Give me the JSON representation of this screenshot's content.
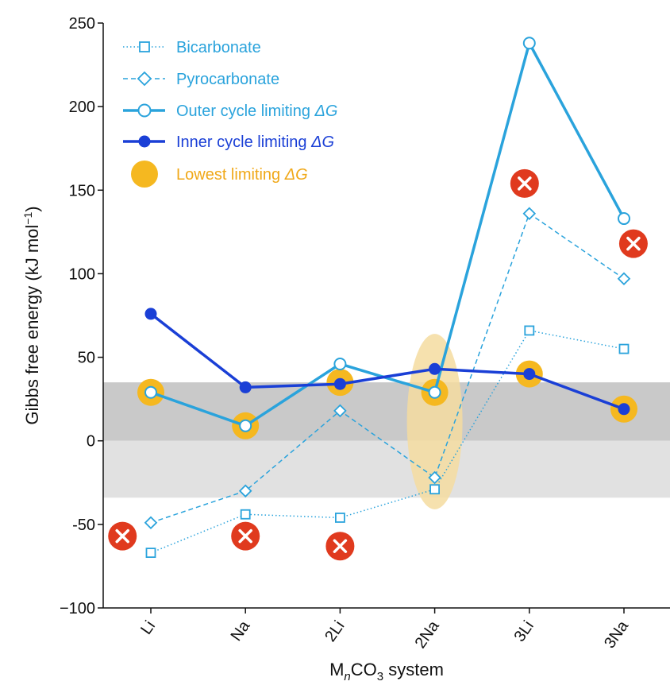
{
  "chart_data": {
    "type": "line",
    "ylabel_main": "Gibbs free energy (kJ mol",
    "ylabel_sup": "−1",
    "ylabel_close": ")",
    "xlabel_pre": "M",
    "xlabel_sub1": "n",
    "xlabel_mid": "CO",
    "xlabel_sub2": "3",
    "xlabel_post": " system",
    "ylim": [
      -100,
      250
    ],
    "yticks": [
      {
        "value": 250,
        "label": "250"
      },
      {
        "value": 200,
        "label": "200"
      },
      {
        "value": 150,
        "label": "150"
      },
      {
        "value": 100,
        "label": "100"
      },
      {
        "value": 50,
        "label": "50"
      },
      {
        "value": 0,
        "label": "0"
      },
      {
        "value": -50,
        "label": "-50"
      },
      {
        "value": -100,
        "label": "−100"
      }
    ],
    "categories": [
      "Li",
      "Na",
      "2Li",
      "2Na",
      "3Li",
      "3Na"
    ],
    "bands": [
      {
        "name": "dark-band",
        "y0": 0,
        "y1": 35,
        "color": "#c9c9c9"
      },
      {
        "name": "light-band",
        "y0": -34,
        "y1": 0,
        "color": "#e1e1e1"
      }
    ],
    "series": [
      {
        "name": "Bicarbonate",
        "style": "dotted",
        "marker": "square",
        "color": "#2aa3dc",
        "values": [
          -67,
          -44,
          -46,
          -29,
          66,
          55
        ]
      },
      {
        "name": "Pyrocarbonate",
        "style": "dashed",
        "marker": "diamond",
        "color": "#2aa3dc",
        "values": [
          -49,
          -30,
          18,
          -22,
          136,
          97
        ]
      },
      {
        "name": "Outer cycle limiting ",
        "name_italic": "ΔG",
        "style": "solid",
        "marker": "open-circle",
        "color": "#2aa3dc",
        "values": [
          29,
          9,
          46,
          29,
          238,
          133
        ]
      },
      {
        "name": "Inner cycle limiting ",
        "name_italic": "ΔG",
        "style": "solid",
        "marker": "filled-circle",
        "color": "#1a3fd6",
        "values": [
          76,
          32,
          34,
          43,
          40,
          19
        ]
      }
    ],
    "lowest_limiting": {
      "name": "Lowest limiting ",
      "name_italic": "ΔG",
      "color": "#f5b820",
      "points": [
        {
          "category": "Li",
          "value": 29
        },
        {
          "category": "Na",
          "value": 9
        },
        {
          "category": "2Li",
          "value": 35
        },
        {
          "category": "2Na",
          "value": 29
        },
        {
          "category": "3Li",
          "value": 40
        },
        {
          "category": "3Na",
          "value": 19
        }
      ]
    },
    "highlight_ellipse": {
      "category": "2Na",
      "y_min": -41,
      "y_max": 64,
      "color": "#f5dca0"
    },
    "failure_markers": {
      "color": "#e03a1e",
      "points": [
        {
          "category": "Li",
          "value": -57,
          "offset": -0.3
        },
        {
          "category": "Na",
          "value": -57,
          "offset": 0
        },
        {
          "category": "2Li",
          "value": -63,
          "offset": 0
        },
        {
          "category": "3Li",
          "value": 154,
          "offset": -0.05
        },
        {
          "category": "3Na",
          "value": 118,
          "offset": 0.1
        }
      ]
    }
  }
}
